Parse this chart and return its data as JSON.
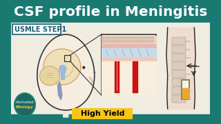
{
  "bg_color": "#1a7a72",
  "title": "CSF profile in Meningitis",
  "title_color": "#ffffff",
  "title_fontsize": 14.5,
  "subtitle": "USMLE STEP1",
  "subtitle_color": "#1a5a72",
  "subtitle_fontsize": 7,
  "subtitle_box_color": "#ffffff",
  "high_yield_text": "High Yield",
  "high_yield_bg": "#f5c518",
  "high_yield_color": "#000000",
  "high_yield_fontsize": 8,
  "logo_text1": "Animated",
  "logo_text2": "Biology",
  "logo_bg": "#1a6a62",
  "content_bg": "#f0ece0",
  "vessel_color": "#cc1111",
  "spine_color": "#ddccbb",
  "tube_color": "#e8a830",
  "arrow_color": "#222222",
  "zoom_border": "#333333"
}
